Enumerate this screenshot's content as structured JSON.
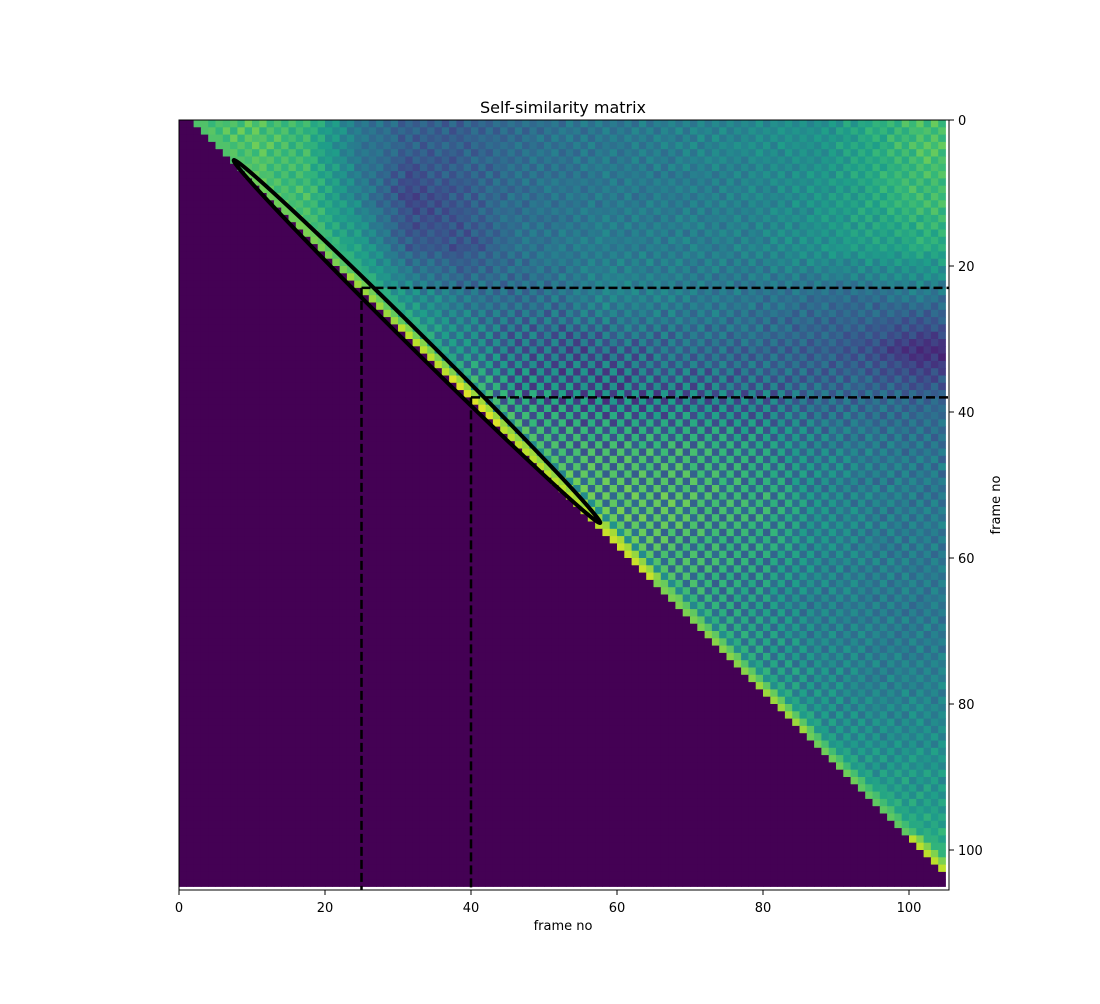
{
  "chart_data": {
    "type": "heatmap",
    "title": "Self-similarity matrix",
    "xlabel": "frame no",
    "ylabel": "frame no",
    "colormap": "viridis",
    "size": 105,
    "masked_region": "lower triangle and main diagonal (cells with column < row + 2)",
    "xlim": [
      0,
      105.5
    ],
    "ylim": [
      105.5,
      0
    ],
    "xticks": [
      "0",
      "20",
      "40",
      "60",
      "80",
      "100"
    ],
    "yticks": [
      "0",
      "20",
      "40",
      "60",
      "80",
      "100"
    ],
    "ytick_side": "right",
    "block_frames": 7,
    "block_mean_values": [
      [
        0.7,
        0.72,
        0.65,
        0.4,
        0.3,
        0.3,
        0.35,
        0.38,
        0.4,
        0.42,
        0.45,
        0.48,
        0.5,
        0.6,
        0.7
      ],
      [
        null,
        0.72,
        0.68,
        0.45,
        0.2,
        0.28,
        0.35,
        0.38,
        0.4,
        0.4,
        0.42,
        0.45,
        0.5,
        0.58,
        0.68
      ],
      [
        null,
        null,
        0.72,
        0.55,
        0.3,
        0.25,
        0.35,
        0.4,
        0.42,
        0.42,
        0.42,
        0.45,
        0.5,
        0.55,
        0.6
      ],
      [
        null,
        null,
        null,
        0.7,
        0.5,
        0.4,
        0.35,
        0.38,
        0.45,
        0.42,
        0.4,
        0.38,
        0.35,
        0.35,
        0.38
      ],
      [
        null,
        null,
        null,
        null,
        0.65,
        0.45,
        0.35,
        0.3,
        0.32,
        0.35,
        0.35,
        0.33,
        0.3,
        0.25,
        0.12
      ],
      [
        null,
        null,
        null,
        null,
        null,
        0.65,
        0.42,
        0.38,
        0.35,
        0.35,
        0.35,
        0.35,
        0.35,
        0.35,
        0.33
      ],
      [
        null,
        null,
        null,
        null,
        null,
        null,
        0.6,
        0.5,
        0.5,
        0.5,
        0.48,
        0.45,
        0.42,
        0.4,
        0.38
      ],
      [
        null,
        null,
        null,
        null,
        null,
        null,
        null,
        0.6,
        0.55,
        0.55,
        0.52,
        0.5,
        0.45,
        0.42,
        0.4
      ],
      [
        null,
        null,
        null,
        null,
        null,
        null,
        null,
        null,
        0.6,
        0.52,
        0.5,
        0.48,
        0.45,
        0.42,
        0.4
      ],
      [
        null,
        null,
        null,
        null,
        null,
        null,
        null,
        null,
        null,
        0.55,
        0.48,
        0.45,
        0.42,
        0.4,
        0.4
      ],
      [
        null,
        null,
        null,
        null,
        null,
        null,
        null,
        null,
        null,
        null,
        0.55,
        0.48,
        0.45,
        0.42,
        0.42
      ],
      [
        null,
        null,
        null,
        null,
        null,
        null,
        null,
        null,
        null,
        null,
        null,
        0.55,
        0.48,
        0.45,
        0.45
      ],
      [
        null,
        null,
        null,
        null,
        null,
        null,
        null,
        null,
        null,
        null,
        null,
        null,
        0.55,
        0.5,
        0.5
      ],
      [
        null,
        null,
        null,
        null,
        null,
        null,
        null,
        null,
        null,
        null,
        null,
        null,
        null,
        0.6,
        0.55
      ],
      [
        null,
        null,
        null,
        null,
        null,
        null,
        null,
        null,
        null,
        null,
        null,
        null,
        null,
        null,
        0.65
      ]
    ],
    "block_checker_amplitude": [
      [
        0.04,
        0.04,
        0.04,
        0.04,
        0.04,
        0.04,
        0.04,
        0.04,
        0.04,
        0.04,
        0.04,
        0.04,
        0.04,
        0.04,
        0.04
      ],
      [
        null,
        0.04,
        0.04,
        0.04,
        0.04,
        0.04,
        0.04,
        0.04,
        0.04,
        0.04,
        0.04,
        0.04,
        0.04,
        0.04,
        0.04
      ],
      [
        null,
        null,
        0.04,
        0.04,
        0.04,
        0.04,
        0.04,
        0.04,
        0.04,
        0.04,
        0.04,
        0.04,
        0.04,
        0.04,
        0.04
      ],
      [
        null,
        null,
        null,
        0.05,
        0.06,
        0.06,
        0.06,
        0.06,
        0.05,
        0.05,
        0.05,
        0.05,
        0.04,
        0.04,
        0.04
      ],
      [
        null,
        null,
        null,
        null,
        0.1,
        0.12,
        0.14,
        0.14,
        0.12,
        0.1,
        0.08,
        0.06,
        0.05,
        0.04,
        0.04
      ],
      [
        null,
        null,
        null,
        null,
        null,
        0.2,
        0.22,
        0.22,
        0.2,
        0.18,
        0.16,
        0.14,
        0.08,
        0.06,
        0.05
      ],
      [
        null,
        null,
        null,
        null,
        null,
        null,
        0.22,
        0.22,
        0.22,
        0.2,
        0.2,
        0.16,
        0.1,
        0.07,
        0.06
      ],
      [
        null,
        null,
        null,
        null,
        null,
        null,
        null,
        0.22,
        0.22,
        0.22,
        0.2,
        0.18,
        0.1,
        0.07,
        0.06
      ],
      [
        null,
        null,
        null,
        null,
        null,
        null,
        null,
        null,
        0.2,
        0.2,
        0.18,
        0.15,
        0.08,
        0.06,
        0.05
      ],
      [
        null,
        null,
        null,
        null,
        null,
        null,
        null,
        null,
        null,
        0.18,
        0.16,
        0.12,
        0.07,
        0.06,
        0.05
      ],
      [
        null,
        null,
        null,
        null,
        null,
        null,
        null,
        null,
        null,
        null,
        0.15,
        0.12,
        0.08,
        0.06,
        0.05
      ],
      [
        null,
        null,
        null,
        null,
        null,
        null,
        null,
        null,
        null,
        null,
        null,
        0.12,
        0.08,
        0.06,
        0.05
      ],
      [
        null,
        null,
        null,
        null,
        null,
        null,
        null,
        null,
        null,
        null,
        null,
        null,
        0.08,
        0.06,
        0.05
      ],
      [
        null,
        null,
        null,
        null,
        null,
        null,
        null,
        null,
        null,
        null,
        null,
        null,
        null,
        0.06,
        0.05
      ],
      [
        null,
        null,
        null,
        null,
        null,
        null,
        null,
        null,
        null,
        null,
        null,
        null,
        null,
        null,
        0.05
      ]
    ],
    "first_offdiagonal_block_values": [
      0.72,
      0.78,
      0.8,
      0.85,
      0.9,
      0.95,
      0.9,
      0.9,
      0.92,
      0.8,
      0.82,
      0.85,
      0.78,
      0.75,
      0.9
    ],
    "annotations": {
      "dashed_vertical_lines": [
        {
          "x": 25,
          "y_from": 23
        },
        {
          "x": 40,
          "y_from": 38
        }
      ],
      "dashed_horizontal_lines": [
        {
          "y": 23,
          "x_from": 25
        },
        {
          "y": 38,
          "x_from": 40
        }
      ],
      "ellipse": {
        "from": [
          7.5,
          5.5
        ],
        "to": [
          57.7,
          55.2
        ],
        "color": "#000000"
      }
    },
    "colors": {
      "masked": "#440154",
      "annotation": "#000000"
    }
  }
}
